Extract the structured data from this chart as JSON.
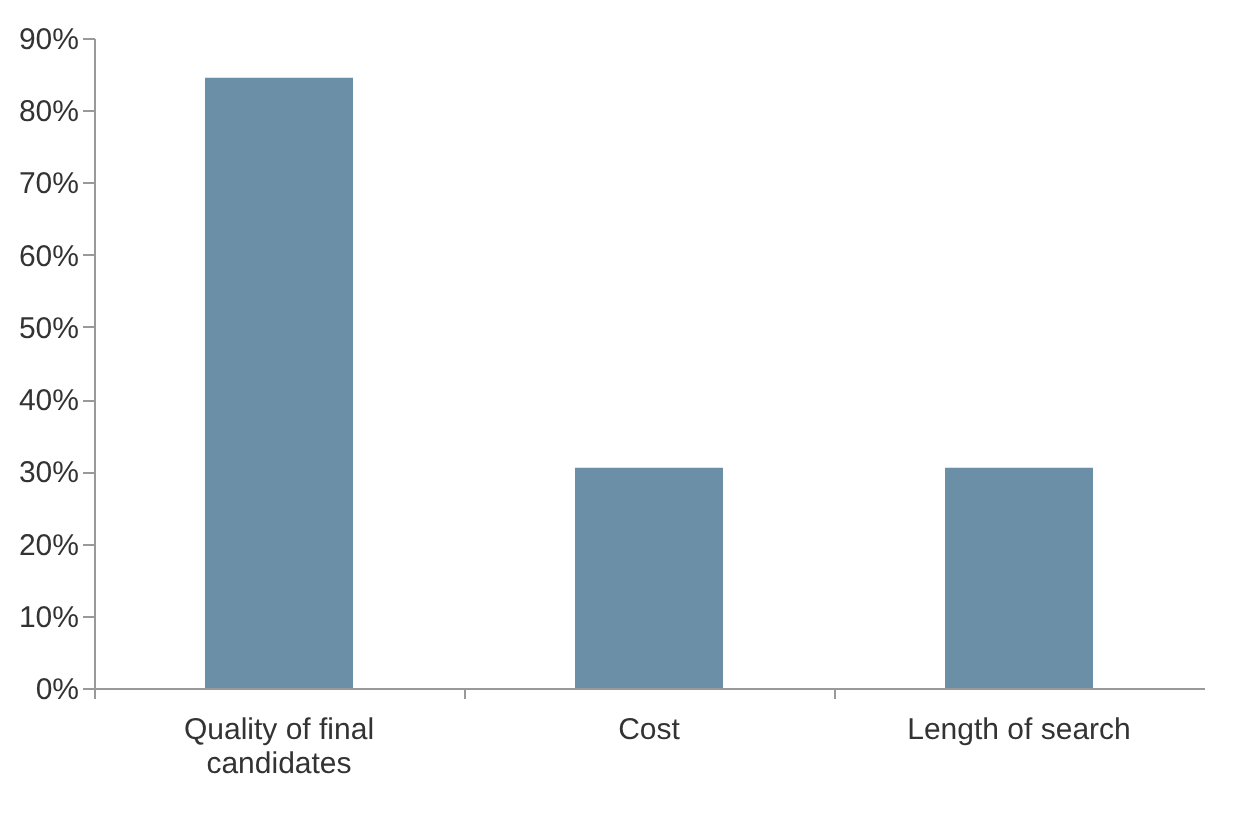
{
  "chart_data": {
    "type": "bar",
    "categories": [
      "Quality of final candidates",
      "Cost",
      "Length of search"
    ],
    "values": [
      84.5,
      30.5,
      30.5
    ],
    "color": "#6a8fa6",
    "ylim": [
      0,
      90
    ],
    "yticks": [
      {
        "value": 0,
        "label": "0%"
      },
      {
        "value": 10,
        "label": "10%"
      },
      {
        "value": 20,
        "label": "20%"
      },
      {
        "value": 30,
        "label": "30%"
      },
      {
        "value": 40,
        "label": "40%"
      },
      {
        "value": 50,
        "label": "50%"
      },
      {
        "value": 60,
        "label": "60%"
      },
      {
        "value": 70,
        "label": "70%"
      },
      {
        "value": 80,
        "label": "80%"
      },
      {
        "value": 90,
        "label": "90%"
      }
    ],
    "grid": false
  }
}
